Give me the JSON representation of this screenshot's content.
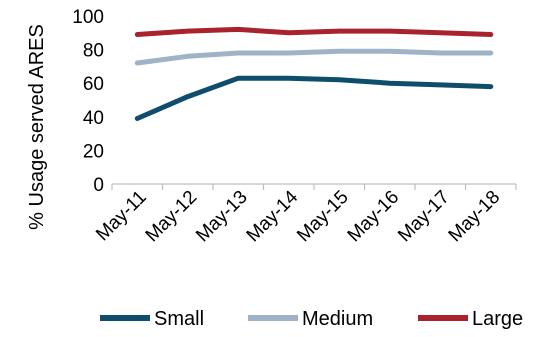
{
  "chart_data": {
    "type": "line",
    "title": "",
    "xlabel": "",
    "ylabel": "% Usage served ARES",
    "categories": [
      "May-11",
      "May-12",
      "May-13",
      "May-14",
      "May-15",
      "May-16",
      "May-17",
      "May-18"
    ],
    "ylim": [
      0,
      100
    ],
    "yticks": [
      0,
      20,
      40,
      60,
      80,
      100
    ],
    "grid": false,
    "legend_position": "bottom",
    "series": [
      {
        "name": "Small",
        "color": "#0e4d6b",
        "values": [
          39,
          52,
          63,
          63,
          62,
          60,
          59,
          58
        ]
      },
      {
        "name": "Medium",
        "color": "#9fb3c6",
        "values": [
          72,
          76,
          78,
          78,
          79,
          79,
          78,
          78
        ]
      },
      {
        "name": "Large",
        "color": "#a8232d",
        "values": [
          89,
          91,
          92,
          90,
          91,
          91,
          90,
          89
        ]
      }
    ]
  }
}
